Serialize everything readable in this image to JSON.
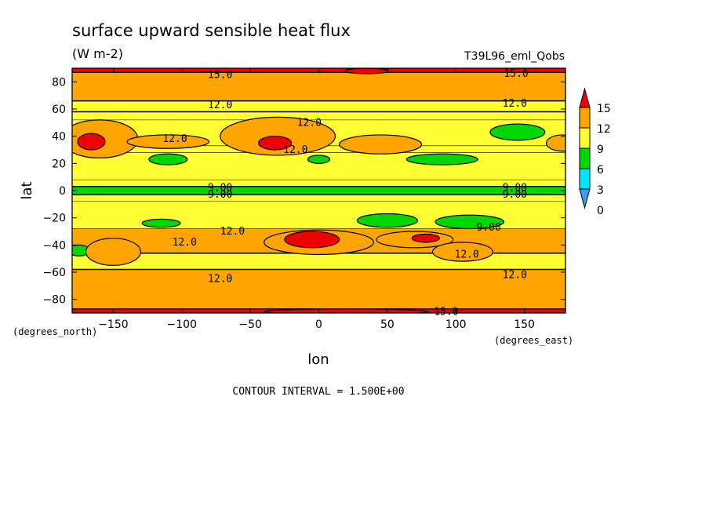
{
  "chart_data": {
    "type": "heatmap",
    "title": "surface upward sensible heat flux",
    "subtitle": "(W m-2)",
    "dataset": "T39L96_eml_Qobs",
    "xlabel": "lon",
    "ylabel": "lat",
    "x_units": "(degrees_east)",
    "y_units": "(degrees_north)",
    "xlim": [
      -180,
      180
    ],
    "ylim": [
      -90,
      90
    ],
    "xticks": [
      -150,
      -100,
      -50,
      0,
      50,
      100,
      150
    ],
    "yticks": [
      -80,
      -60,
      -40,
      -20,
      0,
      20,
      40,
      60,
      80
    ],
    "footer": "CONTOUR INTERVAL = 1.500E+00",
    "colorbar": {
      "levels": [
        "0",
        "3",
        "6",
        "9",
        "12",
        "15"
      ],
      "colors": [
        "#3d9bff",
        "#00e5ff",
        "#00d700",
        "#ffff33",
        "#ffa500",
        "#ee0000"
      ]
    },
    "zonal_bands": [
      {
        "lat_from": -90,
        "lat_to": -87,
        "value": 15.5
      },
      {
        "lat_from": -87,
        "lat_to": -58,
        "value": 13.5
      },
      {
        "lat_from": -58,
        "lat_to": -46,
        "value": 10.5
      },
      {
        "lat_from": -46,
        "lat_to": -28,
        "value": 12.5
      },
      {
        "lat_from": -28,
        "lat_to": -8,
        "value": 10.5
      },
      {
        "lat_from": -8,
        "lat_to": -3,
        "value": 9.5
      },
      {
        "lat_from": -3,
        "lat_to": 3,
        "value": 7.5
      },
      {
        "lat_from": 3,
        "lat_to": 8,
        "value": 9.5
      },
      {
        "lat_from": 8,
        "lat_to": 28,
        "value": 10.5
      },
      {
        "lat_from": 28,
        "lat_to": 33,
        "value": 11.5
      },
      {
        "lat_from": 33,
        "lat_to": 52,
        "value": 10.5
      },
      {
        "lat_from": 52,
        "lat_to": 66,
        "value": 10.5
      },
      {
        "lat_from": 66,
        "lat_to": 87,
        "value": 13.5
      },
      {
        "lat_from": 87,
        "lat_to": 90,
        "value": 15.5
      }
    ],
    "features": [
      {
        "lon": -160,
        "lat": 38,
        "rx": 28,
        "ry": 14,
        "value": 13.5
      },
      {
        "lon": -166,
        "lat": 36,
        "rx": 10,
        "ry": 6,
        "value": 16.0
      },
      {
        "lon": -110,
        "lat": 36,
        "rx": 30,
        "ry": 5,
        "value": 12.5
      },
      {
        "lon": -30,
        "lat": 40,
        "rx": 42,
        "ry": 14,
        "value": 13.5
      },
      {
        "lon": -32,
        "lat": 35,
        "rx": 12,
        "ry": 5,
        "value": 16.0
      },
      {
        "lon": 45,
        "lat": 34,
        "rx": 30,
        "ry": 7,
        "value": 12.5
      },
      {
        "lon": 178,
        "lat": 35,
        "rx": 12,
        "ry": 6,
        "value": 12.5
      },
      {
        "lon": -110,
        "lat": 23,
        "rx": 14,
        "ry": 4,
        "value": 7.5
      },
      {
        "lon": 0,
        "lat": 23,
        "rx": 8,
        "ry": 3,
        "value": 7.5
      },
      {
        "lon": 90,
        "lat": 23,
        "rx": 26,
        "ry": 4,
        "value": 7.5
      },
      {
        "lon": 145,
        "lat": 43,
        "rx": 20,
        "ry": 6,
        "value": 7.5
      },
      {
        "lon": -115,
        "lat": -24,
        "rx": 14,
        "ry": 3,
        "value": 7.5
      },
      {
        "lon": 50,
        "lat": -22,
        "rx": 22,
        "ry": 5,
        "value": 7.5
      },
      {
        "lon": 110,
        "lat": -23,
        "rx": 25,
        "ry": 5,
        "value": 7.5
      },
      {
        "lon": -175,
        "lat": -44,
        "rx": 8,
        "ry": 4,
        "value": 7.5
      },
      {
        "lon": -150,
        "lat": -45,
        "rx": 20,
        "ry": 10,
        "value": 12.5
      },
      {
        "lon": 0,
        "lat": -38,
        "rx": 40,
        "ry": 9,
        "value": 13.5
      },
      {
        "lon": -5,
        "lat": -36,
        "rx": 20,
        "ry": 6,
        "value": 16.0
      },
      {
        "lon": 70,
        "lat": -36,
        "rx": 28,
        "ry": 6,
        "value": 12.5
      },
      {
        "lon": 78,
        "lat": -35,
        "rx": 10,
        "ry": 3,
        "value": 16.0
      },
      {
        "lon": 105,
        "lat": -45,
        "rx": 22,
        "ry": 7,
        "value": 12.5
      },
      {
        "lon": 35,
        "lat": 88,
        "rx": 16,
        "ry": 2,
        "value": 16.0
      },
      {
        "lon": 20,
        "lat": -89,
        "rx": 60,
        "ry": 2,
        "value": 16.0
      }
    ],
    "contour_labels": [
      {
        "lon": -72,
        "lat": 85,
        "text": "15.0"
      },
      {
        "lon": 144,
        "lat": 86,
        "text": "15.0"
      },
      {
        "lon": -72,
        "lat": 63,
        "text": "12.0"
      },
      {
        "lon": 143,
        "lat": 64,
        "text": "12.0"
      },
      {
        "lon": -7,
        "lat": 50,
        "text": "12.0"
      },
      {
        "lon": -105,
        "lat": 38,
        "text": "12.0"
      },
      {
        "lon": -17,
        "lat": 30,
        "text": "12.0"
      },
      {
        "lon": -72,
        "lat": 2,
        "text": "9.00"
      },
      {
        "lon": -72,
        "lat": -3,
        "text": "9.00"
      },
      {
        "lon": 143,
        "lat": 2,
        "text": "9.00"
      },
      {
        "lon": 143,
        "lat": -3,
        "text": "9.00"
      },
      {
        "lon": -63,
        "lat": -30,
        "text": "12.0"
      },
      {
        "lon": 124,
        "lat": -27,
        "text": "9.00"
      },
      {
        "lon": -98,
        "lat": -38,
        "text": "12.0"
      },
      {
        "lon": 108,
        "lat": -47,
        "text": "12.0"
      },
      {
        "lon": -72,
        "lat": -65,
        "text": "12.0"
      },
      {
        "lon": 143,
        "lat": -62,
        "text": "12.0"
      },
      {
        "lon": 93,
        "lat": -89,
        "text": "15.0"
      }
    ]
  }
}
